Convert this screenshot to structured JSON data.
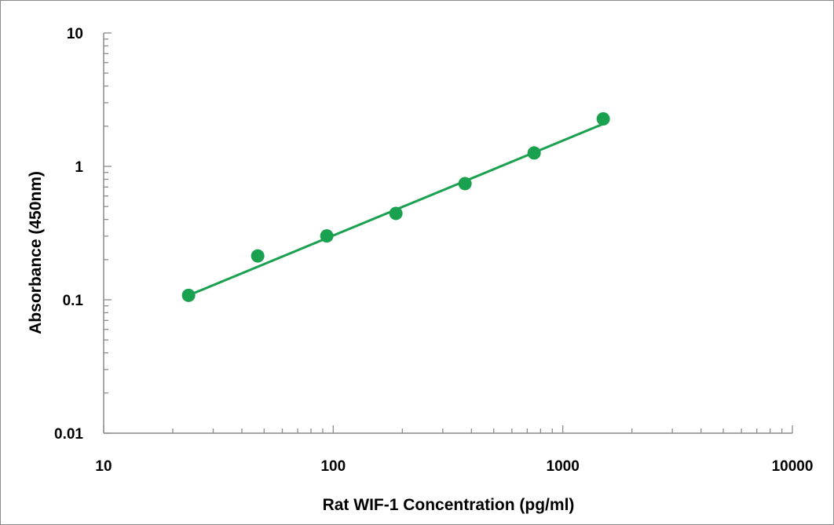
{
  "chart_data": {
    "type": "scatter",
    "title": "",
    "xlabel": "Rat WIF-1 Concentration (pg/ml)",
    "ylabel": "Absorbance (450nm)",
    "xscale": "log",
    "yscale": "log",
    "xlim": [
      10,
      10000
    ],
    "ylim": [
      0.01,
      10
    ],
    "x_ticks": [
      {
        "value": 10,
        "label": "10"
      },
      {
        "value": 100,
        "label": "100"
      },
      {
        "value": 1000,
        "label": "1000"
      },
      {
        "value": 10000,
        "label": "10000"
      }
    ],
    "y_ticks": [
      {
        "value": 0.01,
        "label": "0.01"
      },
      {
        "value": 0.1,
        "label": "0.1"
      },
      {
        "value": 1,
        "label": "1"
      },
      {
        "value": 10,
        "label": "10"
      }
    ],
    "grid": false,
    "legend": "none",
    "series": [
      {
        "color": "#1aa14f",
        "points": [
          {
            "x": 23.44,
            "y": 0.108
          },
          {
            "x": 46.88,
            "y": 0.213
          },
          {
            "x": 93.75,
            "y": 0.301
          },
          {
            "x": 187.5,
            "y": 0.444
          },
          {
            "x": 375,
            "y": 0.742
          },
          {
            "x": 750,
            "y": 1.26
          },
          {
            "x": 1500,
            "y": 2.27
          }
        ],
        "trendline": {
          "type": "power",
          "x": [
            23.44,
            1500
          ],
          "y": [
            0.108,
            2.08
          ]
        }
      }
    ]
  }
}
